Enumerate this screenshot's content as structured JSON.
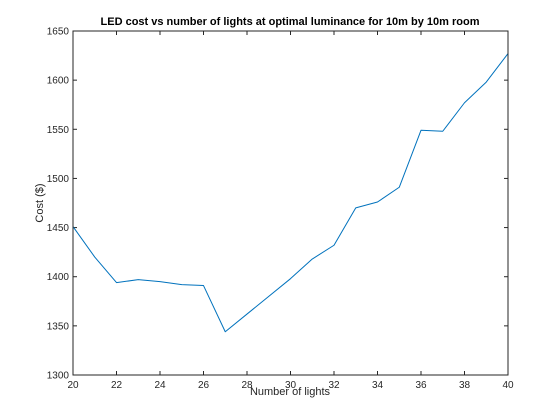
{
  "chart_data": {
    "type": "line",
    "title": "LED cost vs number of lights at optimal luminance for 10m by 10m room",
    "xlabel": "Number of lights",
    "ylabel": "Cost ($)",
    "xlim": [
      20,
      40
    ],
    "ylim": [
      1300,
      1650
    ],
    "xticks": [
      20,
      22,
      24,
      26,
      28,
      30,
      32,
      34,
      36,
      38,
      40
    ],
    "yticks": [
      1300,
      1350,
      1400,
      1450,
      1500,
      1550,
      1600,
      1650
    ],
    "grid": false,
    "series": [
      {
        "color": "#0072BD",
        "x": [
          20,
          21,
          22,
          23,
          24,
          25,
          26,
          27,
          28,
          29,
          30,
          31,
          32,
          33,
          34,
          35,
          36,
          37,
          38,
          39,
          40
        ],
        "y": [
          1451,
          1420,
          1394,
          1397,
          1395,
          1392,
          1391,
          1344,
          1362,
          1380,
          1398,
          1418,
          1432,
          1470,
          1476,
          1491,
          1549,
          1548,
          1577,
          1598,
          1627
        ]
      }
    ]
  }
}
